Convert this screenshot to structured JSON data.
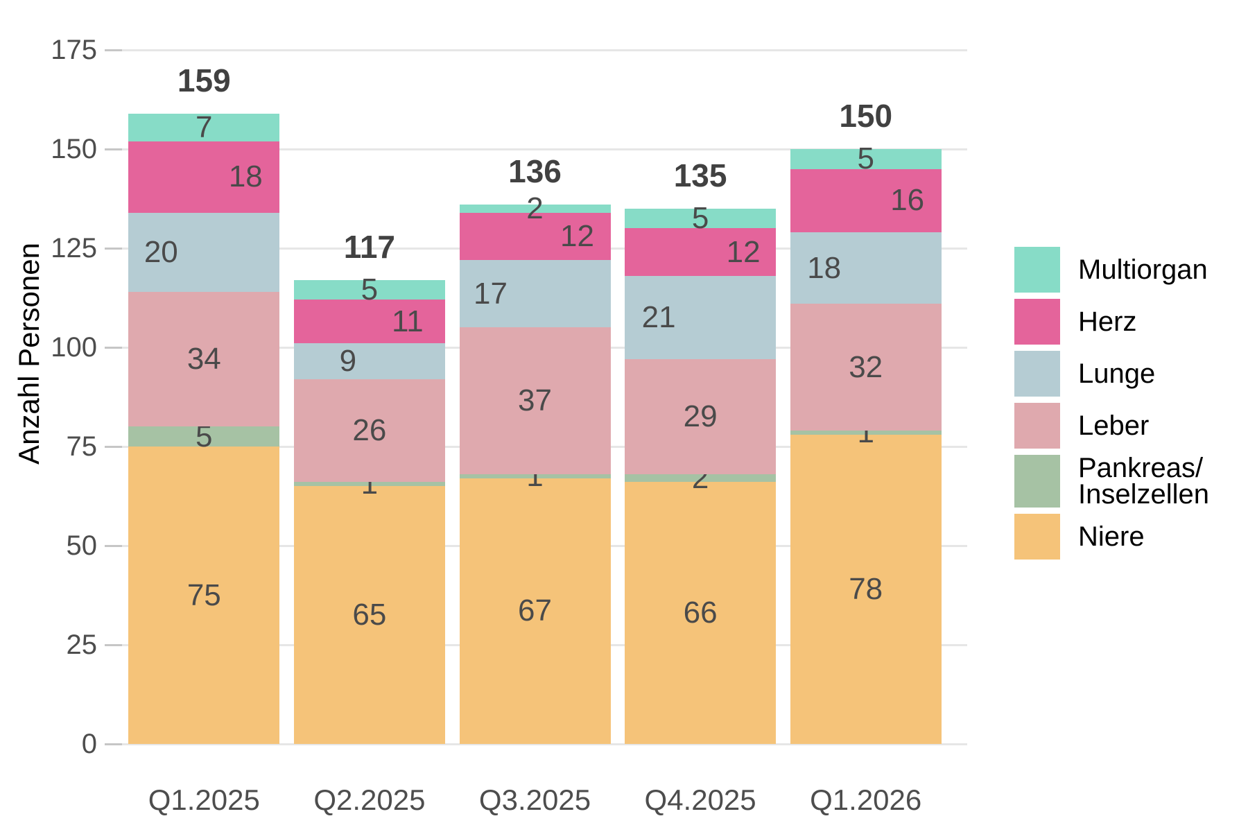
{
  "chart_data": {
    "type": "bar",
    "stacked": true,
    "title": "",
    "ylabel": "Anzahl Personen",
    "xlabel": "",
    "categories": [
      "Q1.2025",
      "Q2.2025",
      "Q3.2025",
      "Q4.2025",
      "Q1.2026"
    ],
    "series": [
      {
        "name": "Niere",
        "color": "#F5C379",
        "values": [
          75,
          65,
          67,
          66,
          78
        ]
      },
      {
        "name": "Pankreas/Inselzellen",
        "color": "#A6C2A4",
        "values": [
          5,
          1,
          1,
          2,
          1
        ]
      },
      {
        "name": "Leber",
        "color": "#DFA9AE",
        "values": [
          34,
          26,
          37,
          29,
          32
        ]
      },
      {
        "name": "Lunge",
        "color": "#B5CCD3",
        "values": [
          20,
          9,
          17,
          21,
          18
        ]
      },
      {
        "name": "Herz",
        "color": "#E4649B",
        "values": [
          18,
          11,
          12,
          12,
          16
        ]
      },
      {
        "name": "Multiorgan",
        "color": "#87DCC7",
        "values": [
          7,
          5,
          2,
          5,
          5
        ]
      }
    ],
    "totals": [
      159,
      117,
      136,
      135,
      150
    ],
    "y_ticks": [
      0,
      25,
      50,
      75,
      100,
      125,
      150,
      175
    ],
    "ylim": [
      0,
      175
    ],
    "grid": true,
    "legend_position": "right",
    "legend": [
      {
        "series": "Multiorgan",
        "lines": [
          "Multiorgan"
        ]
      },
      {
        "series": "Herz",
        "lines": [
          "Herz"
        ]
      },
      {
        "series": "Lunge",
        "lines": [
          "Lunge"
        ]
      },
      {
        "series": "Leber",
        "lines": [
          "Leber"
        ]
      },
      {
        "series": "Pankreas/Inselzellen",
        "lines": [
          "Pankreas/",
          "Inselzellen"
        ]
      },
      {
        "series": "Niere",
        "lines": [
          "Niere"
        ]
      }
    ]
  }
}
